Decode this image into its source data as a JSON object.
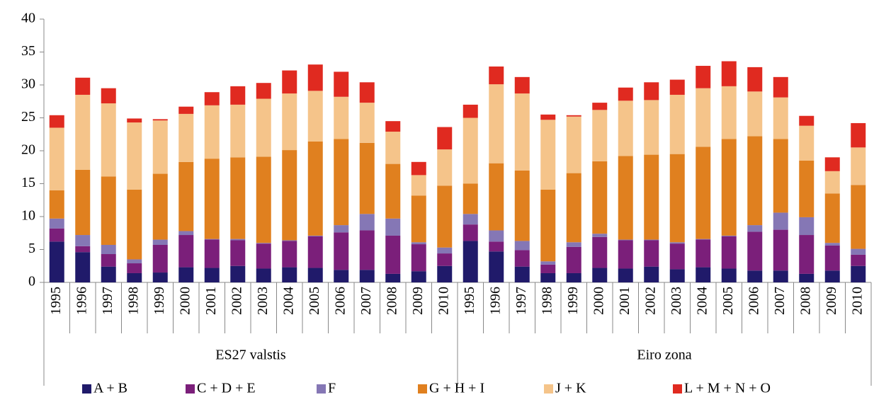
{
  "chart_data": {
    "type": "stacked_bar",
    "categories": [
      "1995",
      "1996",
      "1997",
      "1998",
      "1999",
      "2000",
      "2001",
      "2002",
      "2003",
      "2004",
      "2005",
      "2006",
      "2007",
      "2008",
      "2009",
      "2010",
      "1995",
      "1996",
      "1997",
      "1998",
      "1999",
      "2000",
      "2001",
      "2002",
      "2003",
      "2004",
      "2005",
      "2006",
      "2007",
      "2008",
      "2009",
      "2010"
    ],
    "groups": [
      "ES27 valstis",
      "Eiro zona"
    ],
    "series": [
      {
        "name": "A + B",
        "color": "#201a6a",
        "values": [
          6.2,
          4.6,
          2.4,
          1.4,
          1.5,
          2.3,
          2.2,
          2.5,
          2.1,
          2.3,
          2.2,
          1.9,
          1.9,
          1.3,
          1.7,
          2.5,
          6.3,
          4.7,
          2.4,
          1.4,
          1.4,
          2.2,
          2.1,
          2.4,
          2.0,
          2.3,
          2.1,
          1.8,
          1.8,
          1.3,
          1.8,
          2.5
        ]
      },
      {
        "name": "C + D + E",
        "color": "#7b1f7a",
        "values": [
          2.0,
          0.9,
          1.9,
          1.5,
          4.2,
          4.9,
          4.3,
          3.9,
          3.8,
          4.0,
          4.8,
          5.7,
          6.0,
          5.8,
          4.1,
          1.9,
          2.5,
          1.5,
          2.5,
          1.3,
          4.0,
          4.7,
          4.3,
          4.0,
          3.9,
          4.2,
          4.9,
          5.9,
          6.2,
          5.9,
          3.8,
          1.7
        ]
      },
      {
        "name": "F",
        "color": "#8577b5",
        "values": [
          1.5,
          1.7,
          1.4,
          0.6,
          0.8,
          0.6,
          0.1,
          0.2,
          0.1,
          0.1,
          0.1,
          1.1,
          2.5,
          2.6,
          0.3,
          0.9,
          1.6,
          1.7,
          1.4,
          0.5,
          0.7,
          0.5,
          0.1,
          0.1,
          0.2,
          0.1,
          0.1,
          1.0,
          2.6,
          2.7,
          0.4,
          0.9
        ]
      },
      {
        "name": "G + H + I",
        "color": "#e0801f",
        "values": [
          4.3,
          9.9,
          10.4,
          10.6,
          10.0,
          10.5,
          12.2,
          12.4,
          13.1,
          13.7,
          14.3,
          13.1,
          10.8,
          8.3,
          7.1,
          9.4,
          4.6,
          10.2,
          10.7,
          10.9,
          10.5,
          11.0,
          12.7,
          12.9,
          13.4,
          14.0,
          14.7,
          13.5,
          11.2,
          8.6,
          7.5,
          9.7
        ]
      },
      {
        "name": "J + K",
        "color": "#f5c48a",
        "values": [
          9.5,
          11.4,
          11.1,
          10.2,
          8.1,
          7.3,
          8.1,
          8.0,
          8.8,
          8.6,
          7.7,
          6.4,
          6.1,
          4.9,
          3.1,
          5.5,
          10.0,
          12.0,
          11.7,
          10.6,
          8.6,
          7.8,
          8.4,
          8.3,
          9.0,
          8.9,
          8.0,
          6.8,
          6.3,
          5.3,
          3.4,
          5.7
        ]
      },
      {
        "name": "L + M + N + O",
        "color": "#e02a20",
        "values": [
          1.9,
          2.6,
          2.3,
          0.6,
          0.2,
          1.1,
          2.0,
          2.8,
          2.4,
          3.5,
          4.0,
          3.8,
          3.1,
          1.6,
          2.0,
          3.4,
          2.0,
          2.7,
          2.5,
          0.8,
          0.2,
          1.1,
          2.0,
          2.7,
          2.3,
          3.4,
          3.8,
          3.7,
          3.1,
          1.5,
          2.1,
          3.7
        ]
      }
    ],
    "ylim": [
      0,
      40
    ],
    "yticks": [
      0,
      5,
      10,
      15,
      20,
      25,
      30,
      35,
      40
    ],
    "grid": false,
    "legend": "bottom"
  }
}
